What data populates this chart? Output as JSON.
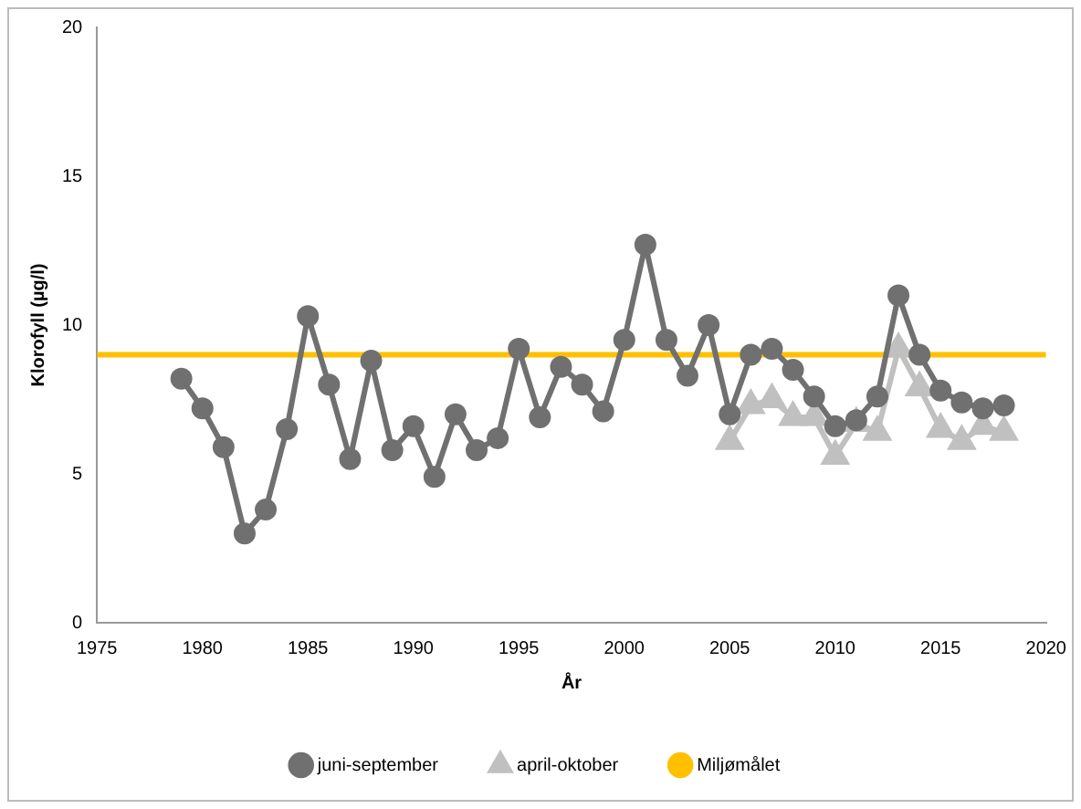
{
  "chart_data": {
    "type": "line",
    "xlabel": "År",
    "ylabel": "Klorofyll (µg/l)",
    "xlim": [
      1975,
      2020
    ],
    "xticks": [
      1975,
      1980,
      1985,
      1990,
      1995,
      2000,
      2005,
      2010,
      2015,
      2020
    ],
    "ylim": [
      0,
      20
    ],
    "yticks": [
      0,
      5,
      10,
      15,
      20
    ],
    "grid": false,
    "legend": "bottom",
    "series": [
      {
        "name": "juni-september",
        "color": "#707070",
        "marker": "circle",
        "x": [
          1979,
          1980,
          1981,
          1982,
          1983,
          1984,
          1985,
          1986,
          1987,
          1988,
          1989,
          1990,
          1991,
          1992,
          1993,
          1994,
          1995,
          1996,
          1997,
          1998,
          1999,
          2000,
          2001,
          2002,
          2003,
          2004,
          2005,
          2006,
          2007,
          2008,
          2009,
          2010,
          2011,
          2012,
          2013,
          2014,
          2015,
          2016,
          2017,
          2018
        ],
        "values": [
          8.2,
          7.2,
          5.9,
          3.0,
          3.8,
          6.5,
          10.3,
          8.0,
          5.5,
          8.8,
          5.8,
          6.6,
          4.9,
          7.0,
          5.8,
          6.2,
          9.2,
          6.9,
          8.6,
          8.0,
          7.1,
          9.5,
          12.7,
          9.5,
          8.3,
          10.0,
          7.0,
          9.0,
          9.2,
          8.5,
          7.6,
          6.6,
          6.8,
          7.6,
          11.0,
          9.0,
          7.8,
          7.4,
          7.2,
          7.3
        ]
      },
      {
        "name": "april-oktober",
        "color": "#c0c0c0",
        "marker": "triangle",
        "x": [
          2005,
          2006,
          2007,
          2008,
          2009,
          2010,
          2011,
          2012,
          2013,
          2014,
          2015,
          2016,
          2017,
          2018
        ],
        "values": [
          6.1,
          7.3,
          7.5,
          6.9,
          6.9,
          5.6,
          6.7,
          6.4,
          9.2,
          7.9,
          6.5,
          6.1,
          6.6,
          6.4
        ]
      },
      {
        "name": "Miljømålet",
        "color": "#ffc000",
        "marker": "none",
        "x": [
          1975,
          2020
        ],
        "values": [
          9,
          9
        ]
      }
    ]
  }
}
